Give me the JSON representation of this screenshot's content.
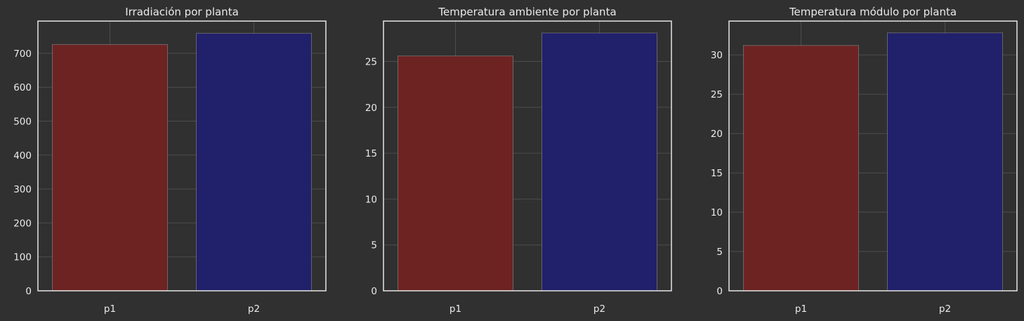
{
  "colors": {
    "background": "#303030",
    "p1": "#6e2323",
    "p2": "#21206a",
    "axis": "#e6e6e6",
    "grid": "#585858"
  },
  "chart_data": [
    {
      "type": "bar",
      "title": "Irradiación por planta",
      "categories": [
        "p1",
        "p2"
      ],
      "values": [
        726,
        759
      ],
      "ylim": [
        0,
        795
      ],
      "yticks": [
        0,
        100,
        200,
        300,
        400,
        500,
        600,
        700
      ],
      "grid": true
    },
    {
      "type": "bar",
      "title": "Temperatura ambiente por planta",
      "categories": [
        "p1",
        "p2"
      ],
      "values": [
        25.6,
        28.1
      ],
      "ylim": [
        0,
        29.4
      ],
      "yticks": [
        0,
        5,
        10,
        15,
        20,
        25
      ],
      "grid": true
    },
    {
      "type": "bar",
      "title": "Temperatura módulo por planta",
      "categories": [
        "p1",
        "p2"
      ],
      "values": [
        31.2,
        32.8
      ],
      "ylim": [
        0,
        34.3
      ],
      "yticks": [
        0,
        5,
        10,
        15,
        20,
        25,
        30
      ],
      "grid": true
    }
  ]
}
